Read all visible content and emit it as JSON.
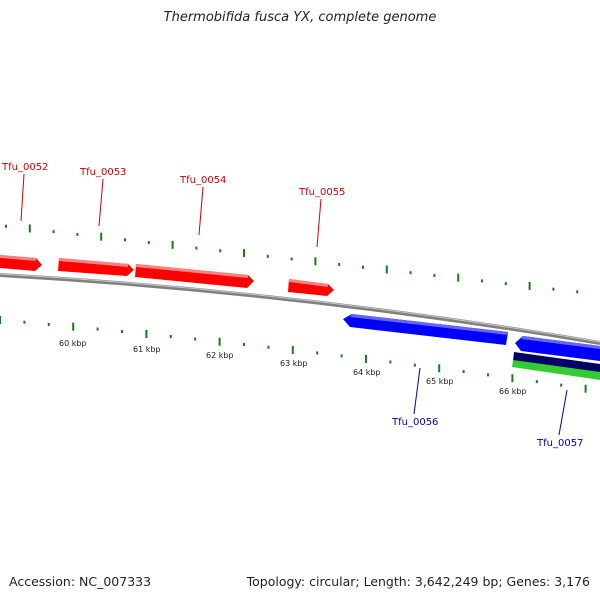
{
  "title": "Thermobifida fusca YX, complete genome",
  "footer": {
    "accession": "Accession: NC_007333",
    "summary": "Topology: circular; Length: 3,642,249 bp; Genes: 3,176"
  },
  "colors": {
    "forward_gene": "#ff0000",
    "forward_label": "#cc0000",
    "reverse_gene": "#0000ff",
    "reverse_label": "#0000aa",
    "backbone": "#808080",
    "tick": "#1a7a1a",
    "green_feature": "#33cc33",
    "navy_feature": "#000066"
  },
  "genes": [
    {
      "id": "Tfu_0052",
      "strand": "forward"
    },
    {
      "id": "Tfu_0053",
      "strand": "forward"
    },
    {
      "id": "Tfu_0054",
      "strand": "forward"
    },
    {
      "id": "Tfu_0055",
      "strand": "forward"
    },
    {
      "id": "Tfu_0056",
      "strand": "reverse"
    },
    {
      "id": "Tfu_0057",
      "strand": "reverse"
    }
  ],
  "tick_labels": [
    "60 kbp",
    "61 kbp",
    "62 kbp",
    "63 kbp",
    "64 kbp",
    "65 kbp",
    "66 kbp"
  ]
}
